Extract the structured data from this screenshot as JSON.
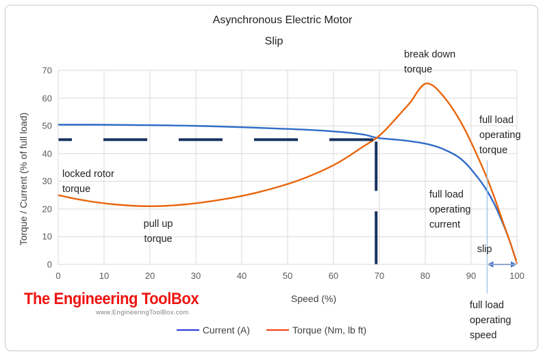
{
  "branding": {
    "name": "The Engineering ToolBox",
    "website": "www.EngineeringToolBox.com",
    "color": "#ee1411"
  },
  "legend": {
    "items": [
      {
        "label": "Current (A)",
        "color": "#2336d6"
      },
      {
        "label": "Torque (Nm, lb ft)",
        "color": "#f33a08"
      }
    ]
  },
  "chart_data": {
    "type": "line",
    "title": "Asynchronous Electric Motor",
    "subtitle": "Slip",
    "xlabel": "Speed (%)",
    "ylabel": "Torque / Current (% of full load)",
    "xlim": [
      0,
      100
    ],
    "ylim": [
      0,
      70
    ],
    "xticks": [
      0,
      10,
      20,
      30,
      40,
      50,
      60,
      70,
      80,
      90,
      100
    ],
    "yticks": [
      0,
      10,
      20,
      30,
      40,
      50,
      60,
      70
    ],
    "grid": true,
    "legend_position": "bottom",
    "colors": {
      "grid": "#d9d9d9",
      "axis_text": "#595959",
      "current": "#2e6bc8",
      "torque": "#e8650c",
      "guide": "#16315f",
      "marker": "#9dc3e6",
      "arrow": "#4472c4"
    },
    "series": [
      {
        "name": "Current (A)",
        "color_key": "current",
        "points": [
          [
            0,
            50.4
          ],
          [
            8,
            50.4
          ],
          [
            16,
            50.3
          ],
          [
            24,
            50.15
          ],
          [
            32,
            49.9
          ],
          [
            40,
            49.5
          ],
          [
            48,
            49.0
          ],
          [
            54,
            48.6
          ],
          [
            60,
            48.0
          ],
          [
            64,
            47.4
          ],
          [
            67,
            46.7
          ],
          [
            69.3,
            45.7
          ],
          [
            71,
            45.4
          ],
          [
            73,
            45.1
          ],
          [
            75,
            44.8
          ],
          [
            77,
            44.4
          ],
          [
            79,
            43.9
          ],
          [
            81,
            43.2
          ],
          [
            83,
            42.2
          ],
          [
            85,
            40.8
          ],
          [
            87,
            39.0
          ],
          [
            89,
            36.2
          ],
          [
            91,
            32.3
          ],
          [
            93,
            27.8
          ],
          [
            95,
            22.0
          ],
          [
            97,
            14.5
          ],
          [
            98.5,
            8.0
          ],
          [
            100,
            0.4
          ]
        ]
      },
      {
        "name": "Torque (Nm, lb ft)",
        "color_key": "torque",
        "points": [
          [
            0,
            25.0
          ],
          [
            4,
            23.6
          ],
          [
            8,
            22.5
          ],
          [
            12,
            21.7
          ],
          [
            16,
            21.2
          ],
          [
            20,
            21.0
          ],
          [
            24,
            21.2
          ],
          [
            28,
            21.7
          ],
          [
            32,
            22.5
          ],
          [
            36,
            23.5
          ],
          [
            40,
            24.7
          ],
          [
            44,
            26.2
          ],
          [
            48,
            28.0
          ],
          [
            52,
            30.1
          ],
          [
            56,
            32.7
          ],
          [
            60,
            35.8
          ],
          [
            63,
            38.7
          ],
          [
            66,
            42.0
          ],
          [
            69.3,
            45.5
          ],
          [
            71,
            48.0
          ],
          [
            73,
            51.5
          ],
          [
            75,
            55.2
          ],
          [
            77,
            59.0
          ],
          [
            78.5,
            62.8
          ],
          [
            80,
            65.2
          ],
          [
            81.5,
            64.7
          ],
          [
            83,
            62.5
          ],
          [
            85,
            58.5
          ],
          [
            87,
            53.5
          ],
          [
            89,
            47.5
          ],
          [
            91,
            40.5
          ],
          [
            93,
            33.0
          ],
          [
            95,
            24.5
          ],
          [
            97,
            15.0
          ],
          [
            98.5,
            8.0
          ],
          [
            100,
            0.4
          ]
        ]
      }
    ],
    "guides": [
      {
        "kind": "dashed-h",
        "y": 45,
        "x0": 0,
        "x1": 69.3,
        "color_key": "guide"
      },
      {
        "kind": "dashed-v",
        "x": 69.3,
        "y0": 44.3,
        "y1": 0,
        "color_key": "guide"
      },
      {
        "kind": "marker-v",
        "x": 93.5,
        "y0": 37.5,
        "y1": -10.5,
        "color_key": "marker"
      },
      {
        "kind": "arrow-h",
        "y": 0,
        "x0": 93.5,
        "x1": 100,
        "color_key": "arrow"
      }
    ],
    "annotations": [
      {
        "text": "locked rotor\ntorque",
        "x": 0.9,
        "y": 35.2,
        "align": "left"
      },
      {
        "text": "pull up\ntorque",
        "x": 21.8,
        "y": 17.2,
        "align": "center"
      },
      {
        "text": "break down\ntorque",
        "x": 75.4,
        "y": 78.5,
        "align": "left"
      },
      {
        "text": "full load\noperating\ntorque",
        "x": 91.8,
        "y": 54.8,
        "align": "left"
      },
      {
        "text": "full load\noperating\ncurrent",
        "x": 80.9,
        "y": 27.8,
        "align": "left"
      },
      {
        "text": "slip",
        "x": 91.3,
        "y": 8.1,
        "align": "left"
      },
      {
        "text": "full load\noperating\nspeed",
        "x": 89.7,
        "y": -12.2,
        "align": "left"
      }
    ]
  }
}
